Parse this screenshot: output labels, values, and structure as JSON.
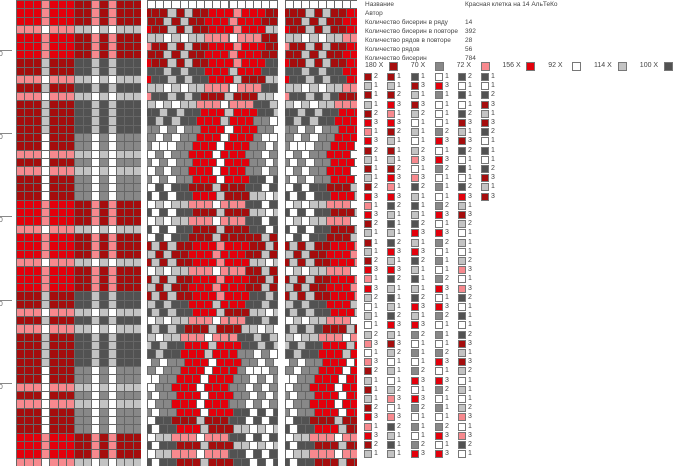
{
  "info": [
    {
      "label": "Название",
      "value": "Красная клетка на 14 АльТеКо"
    },
    {
      "label": "Автор",
      "value": ""
    },
    {
      "label": "Количество бисерин в ряду",
      "value": "14"
    },
    {
      "label": "Количество бисерин в повторе",
      "value": "392"
    },
    {
      "label": "Количество рядов в повторе",
      "value": "28"
    },
    {
      "label": "Количество рядов",
      "value": "56"
    },
    {
      "label": "Количество бисерин",
      "value": "784"
    }
  ],
  "colors": {
    "D": "#a50d0d",
    "R": "#e3000b",
    "P": "#f7898e",
    "L": "#c3c3c3",
    "G": "#888888",
    "K": "#525252",
    "W": "#ffffff"
  },
  "palette": [
    {
      "label": "180 X",
      "color": "D"
    },
    {
      "label": "70 X",
      "color": "G"
    },
    {
      "label": "72 X",
      "color": "P"
    },
    {
      "label": "156 X",
      "color": "R"
    },
    {
      "label": "92 X",
      "color": "W"
    },
    {
      "label": "114 X",
      "color": "L"
    },
    {
      "label": "100 X",
      "color": "K"
    }
  ],
  "row_labels": [
    "50",
    "40",
    "30",
    "20",
    "10"
  ],
  "plaid": {
    "columns": "AAAVAAABBVBVBBB",
    "rows": "RRRHRRRKKHKHKKKKNNHNHNNNRRRHRRRHRRRKKHKHKKKKNNHNHNNNRRRH"
  },
  "sequence": [
    [
      "D2",
      "L1",
      "D1",
      "L1",
      "D2",
      "R3",
      "P1",
      "R3",
      "D2",
      "L1",
      "D1",
      "L1",
      "D2",
      "R3",
      "P1",
      "R3",
      "D2",
      "L1",
      "D1",
      "L1",
      "D2",
      "R3",
      "P1",
      "R3",
      "L2",
      "W1",
      "L1",
      "W1",
      "L2",
      "P3",
      "W1",
      "P3",
      "D2",
      "L1",
      "D1",
      "L1",
      "D2",
      "R3",
      "P1",
      "R3",
      "D2",
      "L1"
    ],
    [
      "D1",
      "L1",
      "D2",
      "R3",
      "P1",
      "R3",
      "D2",
      "L1",
      "D1",
      "L1",
      "D2",
      "R3",
      "P1",
      "R3",
      "K2",
      "L1",
      "K1",
      "L1",
      "K2",
      "R3",
      "L1",
      "R3",
      "K2",
      "L1",
      "K1",
      "L1",
      "K2",
      "R3",
      "L1",
      "D3",
      "L2",
      "W1",
      "L1",
      "W1",
      "L2",
      "P3",
      "W1",
      "P3",
      "K2",
      "L1",
      "K1",
      "L1"
    ],
    [
      "K1",
      "D3",
      "L1",
      "D3",
      "L2",
      "W1",
      "L1",
      "W1",
      "L2",
      "P3",
      "W1",
      "P3",
      "K2",
      "L1",
      "K1",
      "L1",
      "K2",
      "R3",
      "L1",
      "R3",
      "K2",
      "L1",
      "K1",
      "L1",
      "K2",
      "R3",
      "L1",
      "R3",
      "G2",
      "W1",
      "G1",
      "W1",
      "G2",
      "R3",
      "W1",
      "R3",
      "G2",
      "W1",
      "G1",
      "W1",
      "G2",
      "R3"
    ],
    [
      "W1",
      "R3",
      "G1",
      "W1",
      "W1",
      "W1",
      "G2",
      "R3",
      "W1",
      "R3",
      "G2",
      "W1",
      "G1",
      "W1",
      "G2",
      "R3",
      "W1",
      "R3",
      "G2",
      "W1",
      "G1",
      "W1",
      "G2",
      "R3",
      "W1",
      "R3",
      "G2",
      "W1",
      "G1",
      "W1",
      "G2",
      "R3",
      "W1",
      "R3",
      "G2",
      "W1",
      "G1",
      "W1",
      "G2",
      "R3",
      "W1",
      "R3"
    ],
    [
      "K2",
      "W1",
      "K1",
      "W1",
      "K2",
      "D3",
      "L1",
      "D3",
      "K2",
      "W1",
      "K1",
      "W1",
      "K2",
      "R3",
      "L1",
      "D3",
      "L2",
      "W1",
      "L1",
      "W1",
      "L2",
      "P3",
      "W1",
      "P3",
      "K2",
      "W1",
      "K1",
      "W1",
      "K2",
      "D3",
      "L1",
      "D3",
      "L2",
      "W1",
      "L1",
      "W1",
      "L2",
      "P3",
      "W1",
      "P3",
      "K2",
      "W1"
    ],
    [
      "K1",
      "W1",
      "K2",
      "D3",
      "L1",
      "D3",
      "K2",
      "W1",
      "K1",
      "W1",
      "K2",
      "D3",
      "L1",
      "D3"
    ]
  ]
}
